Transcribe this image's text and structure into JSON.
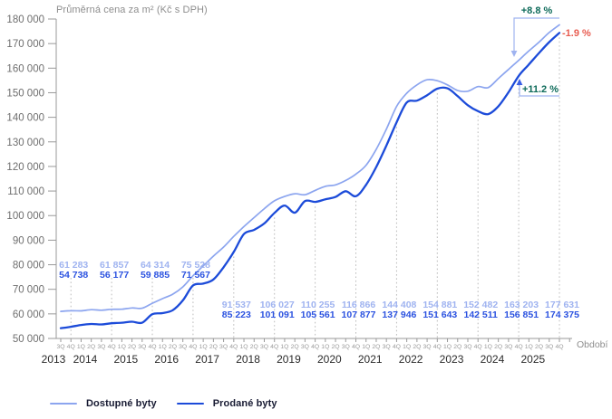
{
  "chart_title": "Průměrná cena za m² (Kč s DPH)",
  "x_axis_label": "Období",
  "legend": [
    {
      "label": "Dostupné byty",
      "color": "#8CA5EF"
    },
    {
      "label": "Prodané byty",
      "color": "#1C4BD9"
    }
  ],
  "colors": {
    "available_line": "#8CA5EF",
    "sold_line": "#1C4BD9",
    "available_label": "#9FB3F0",
    "sold_label": "#2B52E0",
    "annotation_positive": "#0E6B5A",
    "annotation_negative": "#E85C50",
    "gridline": "#bbbbbb",
    "axis": "#999999",
    "y_tick_text": "#6f6f6f",
    "quarter_tick_text": "#9a9a9a",
    "year_text": "#2b2b2b"
  },
  "chart_data": {
    "type": "line",
    "title": "Průměrná cena za m² (Kč s DPH)",
    "xlabel": "Období",
    "ylabel": "Průměrná cena za m² (Kč s DPH)",
    "ylim": [
      50000,
      180000
    ],
    "y_tick_step": 10000,
    "y_tick_labels": [
      "50 000",
      "60 000",
      "70 000",
      "80 000",
      "90 000",
      "100 000",
      "110 000",
      "120 000",
      "130 000",
      "140 000",
      "150 000",
      "160 000",
      "170 000",
      "180 000"
    ],
    "grid": "vertical dotted lines at every 4Q",
    "legend_position": "bottom-left",
    "quarter_tick_labels": [
      "3Q",
      "4Q",
      "1Q",
      "2Q",
      "3Q",
      "4Q",
      "1Q",
      "2Q",
      "3Q",
      "4Q",
      "1Q",
      "2Q",
      "3Q",
      "4Q",
      "1Q",
      "2Q",
      "3Q",
      "4Q",
      "1Q",
      "2Q",
      "3Q",
      "4Q",
      "1Q",
      "2Q",
      "3Q",
      "4Q",
      "1Q",
      "2Q",
      "3Q",
      "4Q",
      "1Q",
      "2Q",
      "3Q",
      "4Q",
      "1Q",
      "2Q",
      "3Q",
      "4Q",
      "1Q",
      "2Q",
      "3Q",
      "4Q",
      "1Q",
      "2Q",
      "3Q",
      "4Q",
      "1Q",
      "2Q",
      "3Q",
      "4Q"
    ],
    "year_labels": [
      "2013",
      "2014",
      "2015",
      "2016",
      "2017",
      "2018",
      "2019",
      "2020",
      "2021",
      "2022",
      "2023",
      "2024",
      "2025"
    ],
    "series": [
      {
        "name": "Dostupné byty",
        "color": "#8CA5EF",
        "values": [
          61000,
          61283,
          61250,
          61700,
          61500,
          61857,
          61900,
          62400,
          62300,
          64314,
          66200,
          68000,
          71000,
          75528,
          79500,
          83500,
          87200,
          91537,
          95500,
          99200,
          102800,
          106027,
          107800,
          108900,
          108500,
          110255,
          111900,
          112500,
          114300,
          116866,
          120500,
          127000,
          135200,
          144408,
          149800,
          153200,
          155300,
          154881,
          153200,
          150900,
          150600,
          152482,
          152100,
          155800,
          159500,
          163203,
          167000,
          170600,
          174500,
          177631
        ]
      },
      {
        "name": "Prodané byty",
        "color": "#1C4BD9",
        "values": [
          54200,
          54738,
          55500,
          55900,
          55700,
          56177,
          56400,
          56800,
          56400,
          59885,
          60300,
          61500,
          65500,
          71567,
          72300,
          74000,
          79000,
          85223,
          92500,
          94200,
          96800,
          101091,
          104100,
          101200,
          105900,
          105561,
          106600,
          107600,
          109900,
          107877,
          112500,
          119800,
          128500,
          137946,
          146000,
          146800,
          149000,
          151643,
          151800,
          148600,
          144900,
          142511,
          141300,
          144500,
          150200,
          156851,
          161500,
          166200,
          170600,
          174375
        ]
      }
    ],
    "value_labels": [
      {
        "period": "4Q 2013",
        "available": "61 283",
        "sold": "54 738"
      },
      {
        "period": "4Q 2014",
        "available": "61 857",
        "sold": "56 177"
      },
      {
        "period": "4Q 2015",
        "available": "64 314",
        "sold": "59 885"
      },
      {
        "period": "4Q 2016",
        "available": "75 528",
        "sold": "71 567"
      },
      {
        "period": "4Q 2017",
        "available": "91 537",
        "sold": "85 223"
      },
      {
        "period": "4Q 2018",
        "available": "106 027",
        "sold": "101 091"
      },
      {
        "period": "4Q 2019",
        "available": "110 255",
        "sold": "105 561"
      },
      {
        "period": "4Q 2020",
        "available": "116 866",
        "sold": "107 877"
      },
      {
        "period": "4Q 2021",
        "available": "144 408",
        "sold": "137 946"
      },
      {
        "period": "4Q 2022",
        "available": "154 881",
        "sold": "151 643"
      },
      {
        "period": "4Q 2023",
        "available": "152 482",
        "sold": "142 511"
      },
      {
        "period": "4Q 2024",
        "available": "163 203",
        "sold": "156 851"
      },
      {
        "period": "4Q 2025",
        "available": "177 631",
        "sold": "174 375"
      }
    ],
    "annotations": {
      "available_change": {
        "text": "+8.8 %",
        "color": "#0E6B5A"
      },
      "difference": {
        "text": "-1.9 %",
        "color": "#E85C50"
      },
      "sold_change": {
        "text": "+11.2 %",
        "color": "#0E6B5A"
      }
    }
  }
}
